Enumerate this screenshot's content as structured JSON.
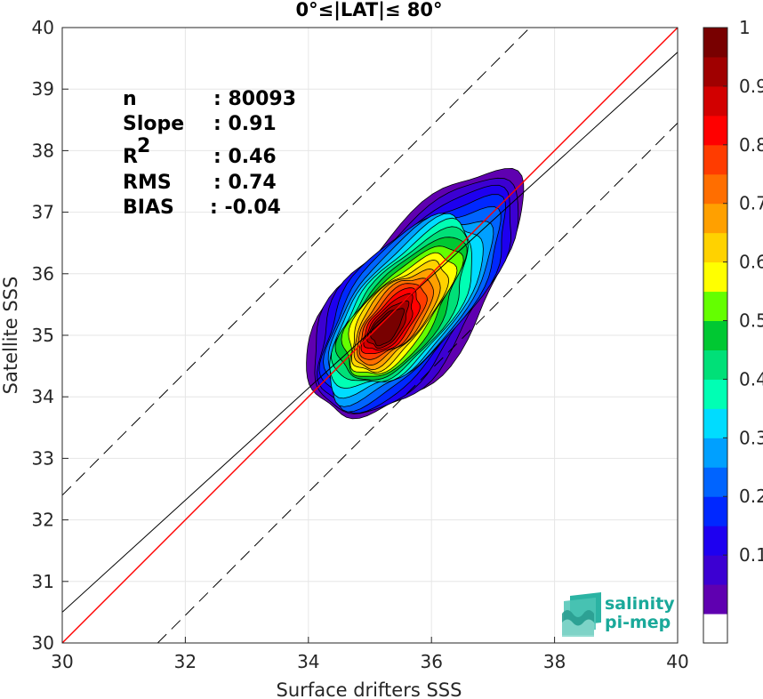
{
  "chart_data": {
    "type": "heatmap",
    "title": "0°≤|LAT|≤ 80°",
    "xlabel": "Surface drifters SSS",
    "ylabel": "Satellite SSS",
    "xlim": [
      30,
      40
    ],
    "ylim": [
      30,
      40
    ],
    "xticks": [
      "30",
      "32",
      "34",
      "36",
      "38",
      "40"
    ],
    "yticks": [
      "30",
      "31",
      "32",
      "33",
      "34",
      "35",
      "36",
      "37",
      "38",
      "39",
      "40"
    ],
    "grid": true,
    "stats": [
      {
        "label": "n",
        "value": ": 80093"
      },
      {
        "label": "Slope",
        "value": ": 0.91"
      },
      {
        "label": "R",
        "sup": "2",
        "value": ": 0.46"
      },
      {
        "label": "RMS",
        "value": ": 0.74"
      },
      {
        "label": "BIAS",
        "value": ": -0.04"
      }
    ],
    "lines": {
      "identity": {
        "color": "#ff0000",
        "slope": 1,
        "intercept": 0
      },
      "regression": {
        "color": "#000000",
        "slope": 0.91,
        "x0": 30,
        "y0": 30.5
      },
      "upper_bound": {
        "dashed": true,
        "x0": 30,
        "y0": 32.4,
        "slope": 1
      },
      "lower_bound": {
        "dashed": true,
        "x0": 31.55,
        "y0": 30,
        "slope": 1
      }
    },
    "density": {
      "center": [
        35.3,
        35.1
      ],
      "peak": [
        35.25,
        35.1
      ],
      "ridge": [
        [
          34.5,
          34.2
        ],
        [
          35.0,
          34.75
        ],
        [
          35.3,
          35.1
        ],
        [
          35.7,
          35.65
        ],
        [
          36.1,
          36.05
        ],
        [
          36.5,
          36.45
        ],
        [
          36.8,
          36.75
        ]
      ]
    },
    "colorbar": {
      "range": [
        0,
        1
      ],
      "ticks": [
        "0.1",
        "0.2",
        "0.3",
        "0.4",
        "0.5",
        "0.6",
        "0.7",
        "0.8",
        "0.9",
        "1"
      ],
      "colors": [
        "#ffffff",
        "#5f00b0",
        "#3c00d2",
        "#1e00f0",
        "#0028ff",
        "#0064ff",
        "#00a0ff",
        "#00dcff",
        "#00ffb4",
        "#00e078",
        "#00c832",
        "#64ff00",
        "#ffff00",
        "#ffd200",
        "#ffa000",
        "#ff6e00",
        "#ff3c00",
        "#ff0000",
        "#d20000",
        "#a00000",
        "#780000"
      ]
    }
  },
  "logo": {
    "line1": "salinity",
    "line2": "pi-mep"
  }
}
